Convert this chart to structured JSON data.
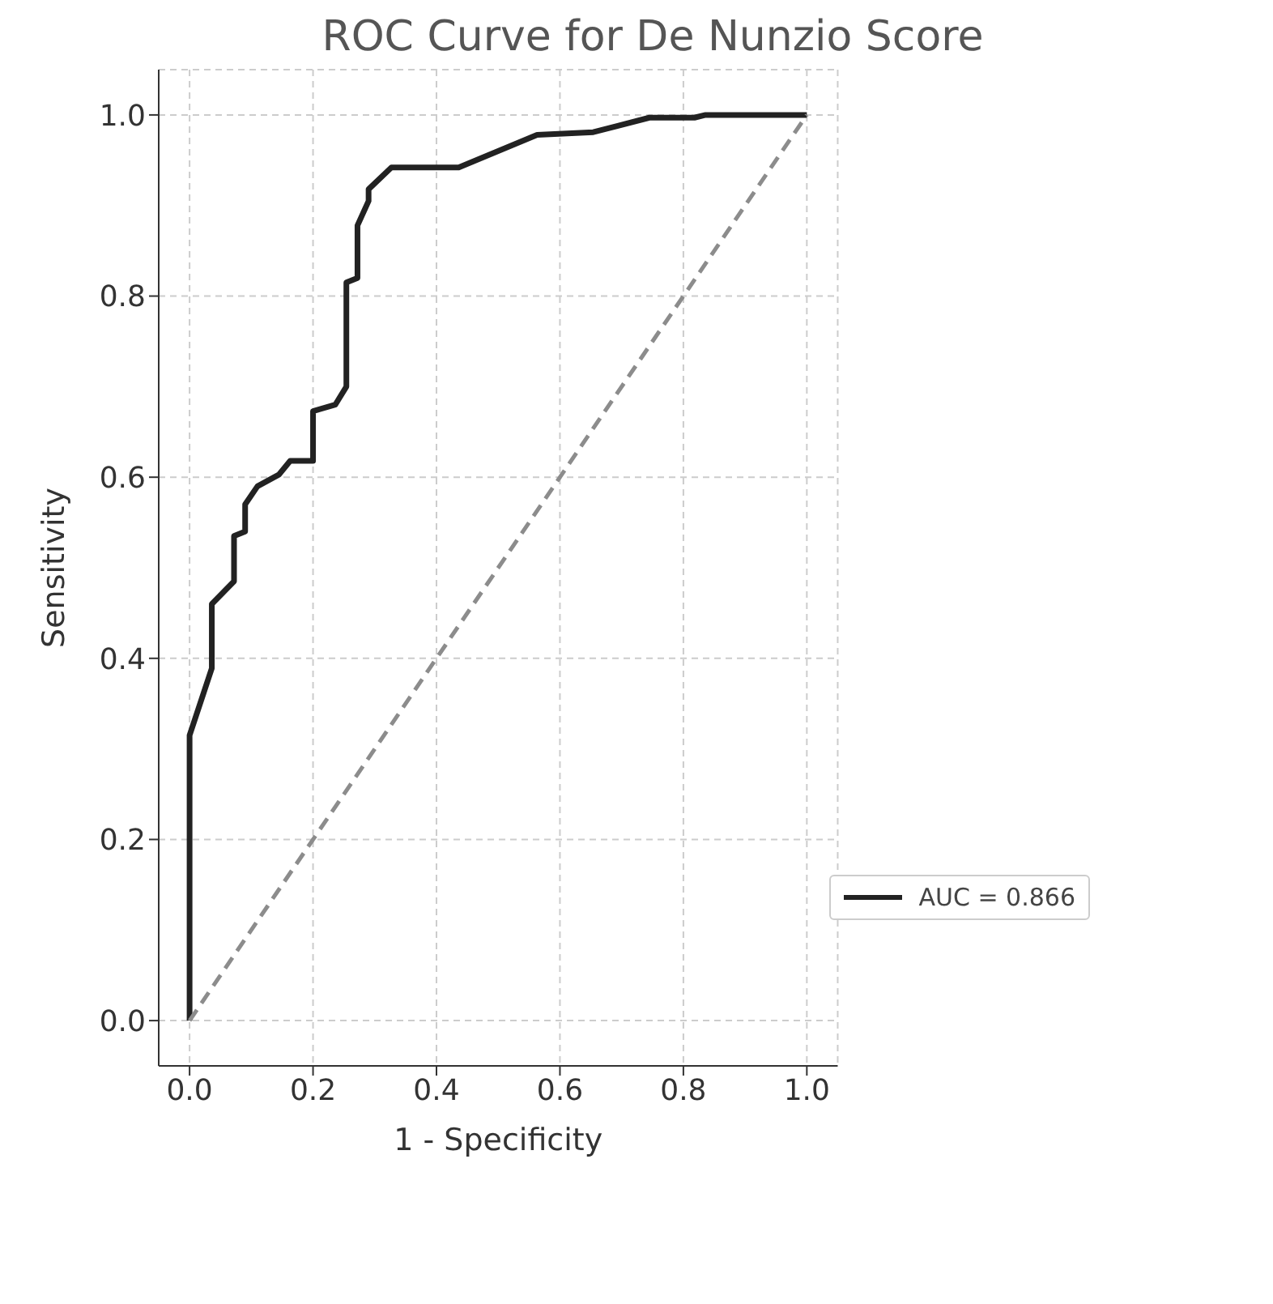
{
  "chart_data": {
    "type": "line",
    "title": "ROC Curve for De Nunzio Score",
    "xlabel": "1 - Specificity",
    "ylabel": "Sensitivity",
    "xlim": [
      -0.05,
      1.05
    ],
    "ylim": [
      -0.05,
      1.05
    ],
    "xticks": [
      {
        "value": 0,
        "label": "0.0"
      },
      {
        "value": 0.2,
        "label": "0.2"
      },
      {
        "value": 0.4,
        "label": "0.4"
      },
      {
        "value": 0.6,
        "label": "0.6"
      },
      {
        "value": 0.8,
        "label": "0.8"
      },
      {
        "value": 1,
        "label": "1.0"
      }
    ],
    "yticks": [
      {
        "value": 0,
        "label": "0.0"
      },
      {
        "value": 0.2,
        "label": "0.2"
      },
      {
        "value": 0.4,
        "label": "0.4"
      },
      {
        "value": 0.6,
        "label": "0.6"
      },
      {
        "value": 0.8,
        "label": "0.8"
      },
      {
        "value": 1,
        "label": "1.0"
      }
    ],
    "grid": true,
    "legend": "bottom right",
    "marker": "none",
    "series": [
      {
        "name": "AUC = 0.866",
        "color": "#222222",
        "line_style": "solid",
        "x": [
          0,
          0,
          0.036,
          0.036,
          0.072,
          0.072,
          0.09,
          0.09,
          0.11,
          0.145,
          0.163,
          0.2,
          0.2,
          0.236,
          0.254,
          0.254,
          0.272,
          0.272,
          0.29,
          0.29,
          0.327,
          0.436,
          0.563,
          0.654,
          0.745,
          0.818,
          0.836,
          1
        ],
        "values": [
          0,
          0.315,
          0.389,
          0.46,
          0.485,
          0.535,
          0.54,
          0.57,
          0.59,
          0.603,
          0.618,
          0.618,
          0.673,
          0.68,
          0.7,
          0.815,
          0.82,
          0.878,
          0.905,
          0.918,
          0.942,
          0.942,
          0.978,
          0.981,
          0.997,
          0.997,
          1,
          1
        ]
      },
      {
        "color": "#8c8c8c",
        "line_style": "dashed",
        "x": [
          0,
          1
        ],
        "values": [
          0,
          1
        ]
      }
    ]
  }
}
